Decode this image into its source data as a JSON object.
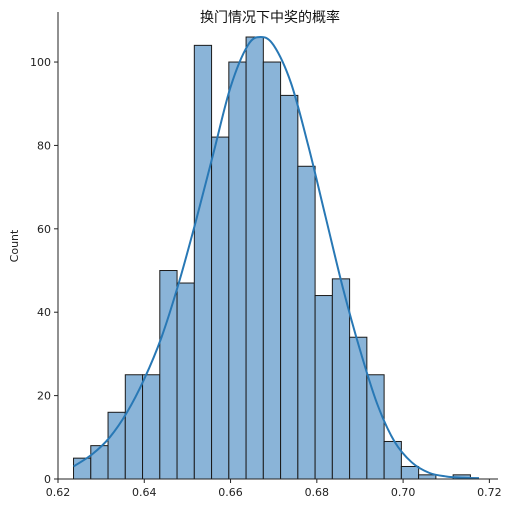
{
  "chart_data": {
    "type": "bar",
    "title": "换门情况下中奖的概率",
    "xlabel": "",
    "ylabel": "Count",
    "xlim": [
      0.62,
      0.722
    ],
    "ylim": [
      0,
      112
    ],
    "x_ticks": [
      0.62,
      0.64,
      0.66,
      0.68,
      0.7,
      0.72
    ],
    "x_tick_labels": [
      "0.62",
      "0.64",
      "0.66",
      "0.68",
      "0.70",
      "0.72"
    ],
    "y_ticks": [
      0,
      20,
      40,
      60,
      80,
      100
    ],
    "y_tick_labels": [
      "0",
      "20",
      "40",
      "60",
      "80",
      "100"
    ],
    "bins": [
      {
        "x0": 0.6236,
        "x1": 0.6276,
        "count": 5
      },
      {
        "x0": 0.6276,
        "x1": 0.6316,
        "count": 8
      },
      {
        "x0": 0.6316,
        "x1": 0.6356,
        "count": 16
      },
      {
        "x0": 0.6356,
        "x1": 0.6396,
        "count": 25
      },
      {
        "x0": 0.6396,
        "x1": 0.6436,
        "count": 25
      },
      {
        "x0": 0.6436,
        "x1": 0.6476,
        "count": 50
      },
      {
        "x0": 0.6476,
        "x1": 0.6516,
        "count": 47
      },
      {
        "x0": 0.6516,
        "x1": 0.6556,
        "count": 104
      },
      {
        "x0": 0.6556,
        "x1": 0.6596,
        "count": 82
      },
      {
        "x0": 0.6596,
        "x1": 0.6636,
        "count": 100
      },
      {
        "x0": 0.6636,
        "x1": 0.6676,
        "count": 106
      },
      {
        "x0": 0.6676,
        "x1": 0.6716,
        "count": 100
      },
      {
        "x0": 0.6716,
        "x1": 0.6756,
        "count": 92
      },
      {
        "x0": 0.6756,
        "x1": 0.6796,
        "count": 75
      },
      {
        "x0": 0.6796,
        "x1": 0.6836,
        "count": 44
      },
      {
        "x0": 0.6836,
        "x1": 0.6876,
        "count": 48
      },
      {
        "x0": 0.6876,
        "x1": 0.6916,
        "count": 34
      },
      {
        "x0": 0.6916,
        "x1": 0.6956,
        "count": 25
      },
      {
        "x0": 0.6956,
        "x1": 0.6996,
        "count": 9
      },
      {
        "x0": 0.6996,
        "x1": 0.7036,
        "count": 3
      },
      {
        "x0": 0.7036,
        "x1": 0.7076,
        "count": 1
      },
      {
        "x0": 0.7076,
        "x1": 0.7116,
        "count": 0
      },
      {
        "x0": 0.7116,
        "x1": 0.7156,
        "count": 1
      }
    ],
    "kde": {
      "x": [
        0.6236,
        0.628,
        0.632,
        0.636,
        0.64,
        0.644,
        0.648,
        0.652,
        0.656,
        0.66,
        0.664,
        0.667,
        0.67,
        0.674,
        0.678,
        0.682,
        0.686,
        0.69,
        0.694,
        0.698,
        0.702,
        0.706,
        0.71,
        0.714,
        0.7176
      ],
      "y": [
        3,
        6,
        10,
        16,
        24,
        34,
        47,
        62,
        78,
        94,
        104,
        106,
        104,
        95,
        80,
        63,
        46,
        31,
        18,
        9,
        4,
        1.5,
        0.6,
        0.3,
        0.2
      ]
    },
    "bar_fill": "#8ab4d8",
    "bar_edge": "#1a1a1a",
    "kde_color": "#2878b5",
    "grid": false,
    "legend": false
  }
}
